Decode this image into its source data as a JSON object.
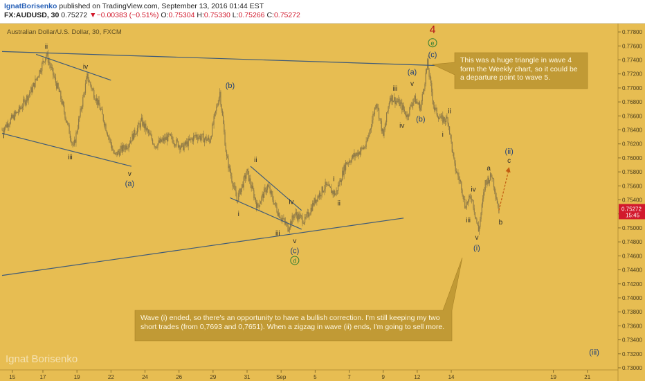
{
  "header": {
    "author": "IgnatBorisenko",
    "published_text": " published on TradingView.com, September 13, 2016 01:44 EST",
    "symbol": "FX:AUDUSD, 30",
    "last": "0.75272",
    "change": "−0.00383 (−0.51%)",
    "o_label": "O:",
    "o": "0.75304",
    "h_label": "H:",
    "h": "0.75330",
    "l_label": "L:",
    "l": "0.75266",
    "c_label": "C:",
    "c": "0.75272"
  },
  "watermark": "Ignat Borisenko",
  "callouts": [
    "This was a huge triangle in wave 4 form the Weekly chart, so it could be a departure point to wave 5.",
    "Wave (i) ended, so there's an opportunity to have a bullish correction. I'm still keeping my two short trades (from 0,7693 and 0,7651). When a zigzag in wave (ii) ends, I'm going to sell more."
  ],
  "price_badge": {
    "value": "0.75272",
    "time": "15:45"
  },
  "colors": {
    "background": "#e7bd52",
    "candle": "#8f7a47",
    "trendline": "#3e5a78",
    "wave_dark": "#2b2b2b",
    "wave_blue": "#1f3f78",
    "wave_green": "#2e7d32",
    "wave_red": "#b71c1c",
    "callout": "#c19a35",
    "price_badge": "#d2192c"
  },
  "chart_data": {
    "type": "candlestick",
    "title": "Australian Dollar/U.S. Dollar, 30, FXCM",
    "ylim": [
      0.7298,
      0.779
    ],
    "y_ticks": [
      "0.77800",
      "0.77600",
      "0.77400",
      "0.77200",
      "0.77000",
      "0.76800",
      "0.76600",
      "0.76400",
      "0.76200",
      "0.76000",
      "0.75800",
      "0.75600",
      "0.75400",
      "0.75200",
      "0.75000",
      "0.74800",
      "0.74600",
      "0.74400",
      "0.74200",
      "0.74000",
      "0.73800",
      "0.73600",
      "0.73400",
      "0.73200",
      "0.73000"
    ],
    "x_ticks": [
      "15",
      "17",
      "19",
      "22",
      "24",
      "26",
      "29",
      "31",
      "Sep",
      "5",
      "7",
      "9",
      "12",
      "14",
      "19",
      "21"
    ],
    "price_path": [
      [
        0,
        0.764
      ],
      [
        5,
        0.7668
      ],
      [
        9,
        0.77
      ],
      [
        13,
        0.7748
      ],
      [
        17,
        0.769
      ],
      [
        21,
        0.7614
      ],
      [
        25,
        0.7716
      ],
      [
        29,
        0.7668
      ],
      [
        33,
        0.7603
      ],
      [
        37,
        0.762
      ],
      [
        41,
        0.7652
      ],
      [
        45,
        0.7618
      ],
      [
        49,
        0.763
      ],
      [
        53,
        0.7615
      ],
      [
        57,
        0.7632
      ],
      [
        61,
        0.7625
      ],
      [
        64,
        0.7694
      ],
      [
        66,
        0.76
      ],
      [
        69,
        0.754
      ],
      [
        72,
        0.758
      ],
      [
        75,
        0.753
      ],
      [
        78,
        0.756
      ],
      [
        81,
        0.7523
      ],
      [
        84,
        0.75
      ],
      [
        86,
        0.752
      ],
      [
        89,
        0.751
      ],
      [
        92,
        0.754
      ],
      [
        95,
        0.756
      ],
      [
        98,
        0.7548
      ],
      [
        101,
        0.7592
      ],
      [
        104,
        0.7605
      ],
      [
        107,
        0.7618
      ],
      [
        110,
        0.7681
      ],
      [
        112,
        0.763
      ],
      [
        114,
        0.7688
      ],
      [
        117,
        0.7677
      ],
      [
        119,
        0.766
      ],
      [
        121,
        0.7685
      ],
      [
        123,
        0.7672
      ],
      [
        125,
        0.7735
      ],
      [
        127,
        0.767
      ],
      [
        129,
        0.7655
      ],
      [
        131,
        0.7655
      ],
      [
        133,
        0.7587
      ],
      [
        135,
        0.756
      ],
      [
        136,
        0.7532
      ],
      [
        138,
        0.7545
      ],
      [
        140,
        0.7495
      ],
      [
        142,
        0.7565
      ],
      [
        144,
        0.7575
      ],
      [
        146,
        0.7525
      ]
    ],
    "forecast_path": [
      [
        146,
        0.7525
      ],
      [
        149,
        0.7585
      ]
    ],
    "trendlines": [
      {
        "from": [
          0,
          0.7752
        ],
        "to": [
          128,
          0.7732
        ]
      },
      {
        "from": [
          0,
          0.7635
        ],
        "to": [
          38,
          0.7588
        ]
      },
      {
        "from": [
          10,
          0.7748
        ],
        "to": [
          32,
          0.7711
        ]
      },
      {
        "from": [
          0,
          0.7432
        ],
        "to": [
          118,
          0.7514
        ]
      },
      {
        "from": [
          67,
          0.7543
        ],
        "to": [
          88,
          0.7498
        ]
      },
      {
        "from": [
          73,
          0.7588
        ],
        "to": [
          88,
          0.7525
        ]
      }
    ],
    "wave_labels": [
      {
        "text": "i",
        "x": 0.5,
        "y": 0.7628,
        "style": "dark"
      },
      {
        "text": "ii",
        "x": 13,
        "y": 0.7756,
        "style": "dark"
      },
      {
        "text": "iii",
        "x": 20,
        "y": 0.7598,
        "style": "dark"
      },
      {
        "text": "iv",
        "x": 24.5,
        "y": 0.7727,
        "style": "dark"
      },
      {
        "text": "v",
        "x": 37.5,
        "y": 0.7574,
        "style": "dark"
      },
      {
        "text": "(a)",
        "x": 37.5,
        "y": 0.756,
        "style": "blue"
      },
      {
        "text": "(b)",
        "x": 67,
        "y": 0.77,
        "style": "blue"
      },
      {
        "text": "ii",
        "x": 74.5,
        "y": 0.7594,
        "style": "dark"
      },
      {
        "text": "i",
        "x": 69.5,
        "y": 0.7517,
        "style": "dark"
      },
      {
        "text": "iv",
        "x": 85,
        "y": 0.7534,
        "style": "dark"
      },
      {
        "text": "iii",
        "x": 81,
        "y": 0.7489,
        "style": "dark"
      },
      {
        "text": "v",
        "x": 86,
        "y": 0.7478,
        "style": "dark"
      },
      {
        "text": "(c)",
        "x": 86,
        "y": 0.7464,
        "style": "blue"
      },
      {
        "text": "d",
        "x": 86,
        "y": 0.745,
        "style": "circle"
      },
      {
        "text": "i",
        "x": 97.5,
        "y": 0.7567,
        "style": "dark"
      },
      {
        "text": "ii",
        "x": 99,
        "y": 0.7532,
        "style": "dark"
      },
      {
        "text": "iii",
        "x": 115.5,
        "y": 0.7696,
        "style": "dark"
      },
      {
        "text": "iv",
        "x": 117.5,
        "y": 0.7643,
        "style": "dark"
      },
      {
        "text": "(a)",
        "x": 120.5,
        "y": 0.7719,
        "style": "blue"
      },
      {
        "text": "v",
        "x": 120.5,
        "y": 0.7703,
        "style": "dark"
      },
      {
        "text": "(b)",
        "x": 123,
        "y": 0.7652,
        "style": "blue"
      },
      {
        "text": "4",
        "x": 126.5,
        "y": 0.7778,
        "style": "red"
      },
      {
        "text": "e",
        "x": 126.5,
        "y": 0.7761,
        "style": "circle"
      },
      {
        "text": "(c)",
        "x": 126.5,
        "y": 0.7744,
        "style": "blue"
      },
      {
        "text": "ii",
        "x": 131.5,
        "y": 0.7664,
        "style": "dark"
      },
      {
        "text": "i",
        "x": 129.5,
        "y": 0.763,
        "style": "dark"
      },
      {
        "text": "iv",
        "x": 138.5,
        "y": 0.7552,
        "style": "dark"
      },
      {
        "text": "iii",
        "x": 137,
        "y": 0.7508,
        "style": "dark"
      },
      {
        "text": "v",
        "x": 139.5,
        "y": 0.7483,
        "style": "dark"
      },
      {
        "text": "(i)",
        "x": 139.5,
        "y": 0.7468,
        "style": "blue"
      },
      {
        "text": "a",
        "x": 143,
        "y": 0.7582,
        "style": "dark"
      },
      {
        "text": "b",
        "x": 146.5,
        "y": 0.7505,
        "style": "dark"
      },
      {
        "text": "(ii)",
        "x": 149,
        "y": 0.7606,
        "style": "blue"
      },
      {
        "text": "c",
        "x": 149,
        "y": 0.7593,
        "style": "dark"
      },
      {
        "text": "(iii)",
        "x": 174,
        "y": 0.7319,
        "style": "blue"
      }
    ]
  }
}
